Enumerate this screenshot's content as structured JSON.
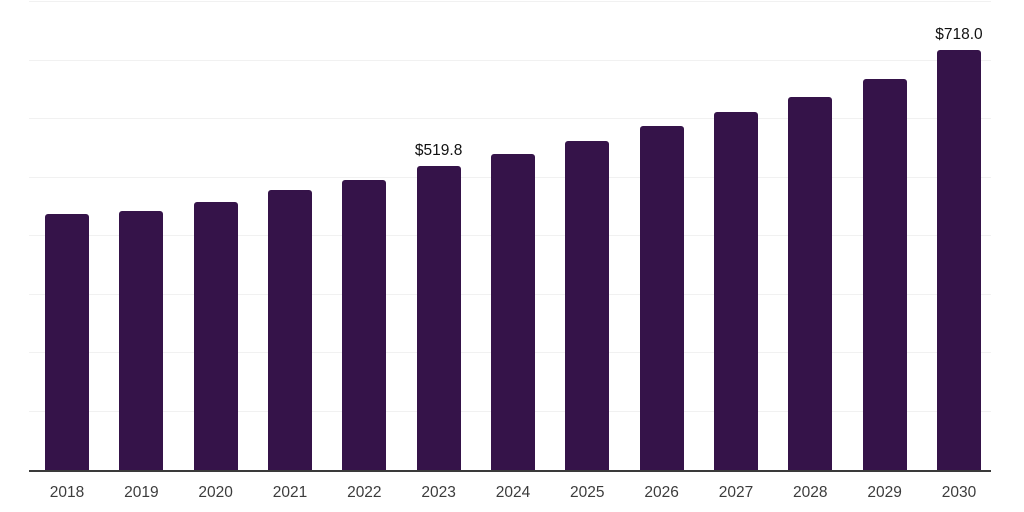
{
  "chart_data": {
    "type": "bar",
    "title": "",
    "xlabel": "",
    "ylabel": "",
    "categories": [
      "2018",
      "2019",
      "2020",
      "2021",
      "2022",
      "2023",
      "2024",
      "2025",
      "2026",
      "2027",
      "2028",
      "2029",
      "2030"
    ],
    "values": [
      438,
      442,
      459,
      478,
      496,
      519.8,
      540,
      562,
      588,
      612,
      638,
      669,
      718
    ],
    "point_labels": [
      "",
      "",
      "",
      "",
      "",
      "$519.8",
      "",
      "",
      "",
      "",
      "",
      "",
      "$718.0"
    ],
    "ylim": [
      0,
      800
    ],
    "grid_step": 100,
    "grid": "on",
    "legend": "off",
    "colors": {
      "bar": "#351349",
      "gridline": "#f1f1f1",
      "axis": "#3a3a3a",
      "data_label": "#111111",
      "tick_label": "#3c3c3c",
      "background": "#ffffff"
    }
  }
}
